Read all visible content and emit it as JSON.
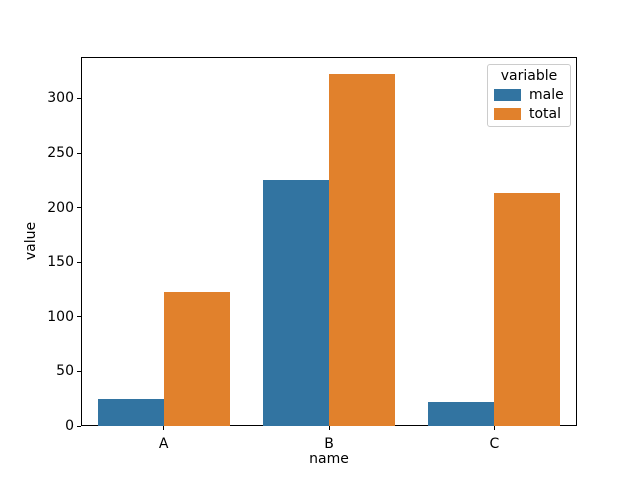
{
  "chart_data": {
    "type": "bar",
    "title": "",
    "xlabel": "name",
    "ylabel": "value",
    "legend_title": "variable",
    "legend_position": "upper right",
    "grid": false,
    "categories": [
      "A",
      "B",
      "C"
    ],
    "series": [
      {
        "name": "male",
        "color": "#3274a1",
        "values": [
          25,
          225,
          22
        ]
      },
      {
        "name": "total",
        "color": "#e1812c",
        "values": [
          123,
          322,
          213
        ]
      }
    ],
    "yticks": [
      0,
      50,
      100,
      150,
      200,
      250,
      300
    ],
    "ylim": [
      0,
      338
    ],
    "colors": {
      "male": "#3274a1",
      "total": "#e1812c",
      "axis": "#000000",
      "legend_border": "#cccccc",
      "background": "#ffffff"
    }
  }
}
